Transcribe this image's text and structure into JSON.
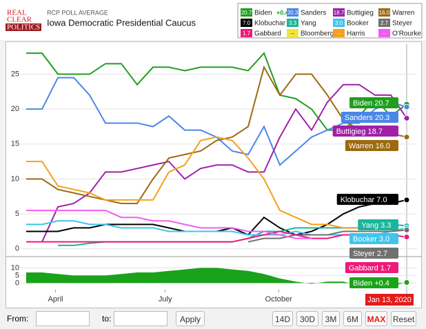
{
  "header": {
    "logo": [
      "REAL",
      "CLEAR",
      "POLITICS"
    ],
    "kicker": "RCP POLL AVERAGE",
    "title": "Iowa Democratic Presidential Caucus"
  },
  "chart_data": {
    "type": "line",
    "x": [
      0,
      13,
      26,
      39,
      52,
      65,
      78,
      91,
      104,
      117,
      130,
      143,
      156,
      169,
      182,
      195,
      208,
      221,
      234,
      247,
      260,
      273,
      286,
      299,
      312
    ],
    "xlim": [
      0,
      312
    ],
    "xticks": [
      {
        "value": 24,
        "label": "April"
      },
      {
        "value": 114,
        "label": "July"
      },
      {
        "value": 207,
        "label": "October"
      }
    ],
    "ylim": [
      -1.5,
      29
    ],
    "yticks": [
      0,
      5,
      10,
      15,
      20,
      25
    ],
    "grid": true,
    "series": [
      {
        "name": "Biden",
        "color": "#1f9e1f",
        "last_label": "20.7",
        "values": [
          28,
          28,
          25,
          25,
          25,
          26.5,
          26.5,
          23.5,
          26,
          26,
          25.5,
          26,
          26,
          26,
          25.5,
          28,
          22,
          21.5,
          20,
          17,
          17,
          19,
          21.5,
          19,
          20.7
        ]
      },
      {
        "name": "Sanders",
        "color": "#4a86e8",
        "last_label": "20.3",
        "values": [
          20,
          20,
          24.5,
          24.5,
          22,
          18,
          18,
          18,
          17.5,
          19,
          17,
          17,
          16,
          14,
          13.5,
          17.5,
          12,
          14,
          16,
          17,
          18,
          18,
          20,
          21,
          20.3
        ]
      },
      {
        "name": "Buttigieg",
        "color": "#a020a8",
        "last_label": "18.7",
        "values": [
          null,
          1,
          6,
          6.5,
          8,
          11,
          11,
          11.5,
          12,
          12.5,
          10,
          11.5,
          12,
          12,
          11,
          11,
          16,
          20,
          17,
          21,
          23.5,
          23.5,
          22,
          22,
          18.7
        ]
      },
      {
        "name": "Warren",
        "color": "#9c6a10",
        "last_label": "16.0",
        "values": [
          10,
          10,
          8.5,
          8,
          7.5,
          7,
          6.5,
          6.5,
          10,
          13,
          13.5,
          14,
          15.5,
          16,
          17.5,
          26,
          22,
          25,
          25,
          22,
          18.5,
          17,
          17,
          16.5,
          16
        ]
      },
      {
        "name": "Klobuchar",
        "color": "#000000",
        "last_label": "7.0",
        "values": [
          2.5,
          2.5,
          2.5,
          3,
          3,
          3.5,
          3.5,
          3.5,
          3.5,
          3,
          2.5,
          2.5,
          2.5,
          3,
          2,
          4.5,
          3,
          2,
          2.5,
          3.5,
          5,
          6,
          6.5,
          6.5,
          7
        ]
      },
      {
        "name": "Yang",
        "color": "#1ab59a",
        "last_label": "3.3",
        "values": [
          null,
          null,
          0.5,
          0.5,
          0.8,
          1,
          1,
          1,
          1,
          1,
          1,
          1,
          1,
          1,
          1.5,
          2.5,
          2.5,
          3,
          3,
          3,
          3,
          3,
          3,
          3.5,
          3.3
        ]
      },
      {
        "name": "Booker",
        "color": "#3fc4ee",
        "last_label": "3.0",
        "values": [
          3.5,
          3.5,
          4,
          4,
          3.5,
          3.5,
          3,
          3,
          3,
          2.5,
          2.5,
          2.5,
          2.5,
          2.5,
          2,
          2,
          2,
          2.5,
          2,
          2,
          2,
          2,
          2,
          2.5,
          3
        ]
      },
      {
        "name": "Steyer",
        "color": "#707070",
        "last_label": "2.7",
        "values": [
          null,
          null,
          null,
          null,
          null,
          null,
          null,
          null,
          null,
          null,
          null,
          null,
          null,
          null,
          1,
          1.5,
          1.5,
          2,
          2,
          2,
          2.5,
          2.5,
          2.5,
          2.5,
          2.7
        ]
      },
      {
        "name": "Gabbard",
        "color": "#ee1a7a",
        "last_label": "1.7",
        "values": [
          1,
          1,
          1,
          1,
          1,
          1,
          1,
          1,
          1,
          1,
          1,
          1,
          1,
          1,
          1.5,
          2,
          2.5,
          2,
          1.5,
          1.5,
          2,
          2,
          2,
          2,
          1.7
        ]
      },
      {
        "name": "Bloomberg",
        "color": "#f2e33a",
        "last_label": "--",
        "values": [
          null,
          null,
          null,
          null,
          null,
          null,
          null,
          null,
          null,
          null,
          null,
          null,
          null,
          null,
          null,
          null,
          null,
          null,
          null,
          null,
          null,
          1.5,
          1,
          null,
          null
        ]
      },
      {
        "name": "Harris",
        "color": "#f5a01a",
        "last_label": "--",
        "values": [
          12.5,
          12.5,
          9,
          8.5,
          8,
          7,
          7,
          7,
          7,
          11,
          12,
          15.5,
          16,
          15.5,
          13,
          10,
          5.5,
          4.5,
          3.5,
          3.5,
          3,
          3,
          null,
          null,
          null
        ]
      },
      {
        "name": "O'Rourke",
        "color": "#f25cf2",
        "last_label": "--",
        "values": [
          5.5,
          5.5,
          5.5,
          5.5,
          5.5,
          5.5,
          4.5,
          4.5,
          4,
          4,
          3.5,
          3,
          3,
          3,
          2.5,
          2.5,
          2,
          1.5,
          1.5,
          null,
          null,
          null,
          null,
          null,
          null
        ]
      }
    ],
    "spread": {
      "name": "Biden",
      "color": "#1aa31a",
      "last_label": "+0.4",
      "ylim": [
        -3,
        12
      ],
      "yticks": [
        0,
        5,
        10
      ],
      "values": [
        7,
        7,
        6,
        5,
        5,
        5,
        6,
        7,
        7,
        8,
        9,
        10,
        10,
        9,
        8,
        6,
        3,
        1,
        -0.5,
        1,
        1,
        -1.5,
        -1.5,
        -2,
        0.4
      ]
    },
    "end_date": "Jan 13, 2020"
  },
  "controls": {
    "from": "From:",
    "to": "to:",
    "apply": "Apply",
    "ranges": [
      "14D",
      "30D",
      "3M",
      "6M",
      "MAX"
    ],
    "active": "MAX",
    "reset": "Reset"
  }
}
